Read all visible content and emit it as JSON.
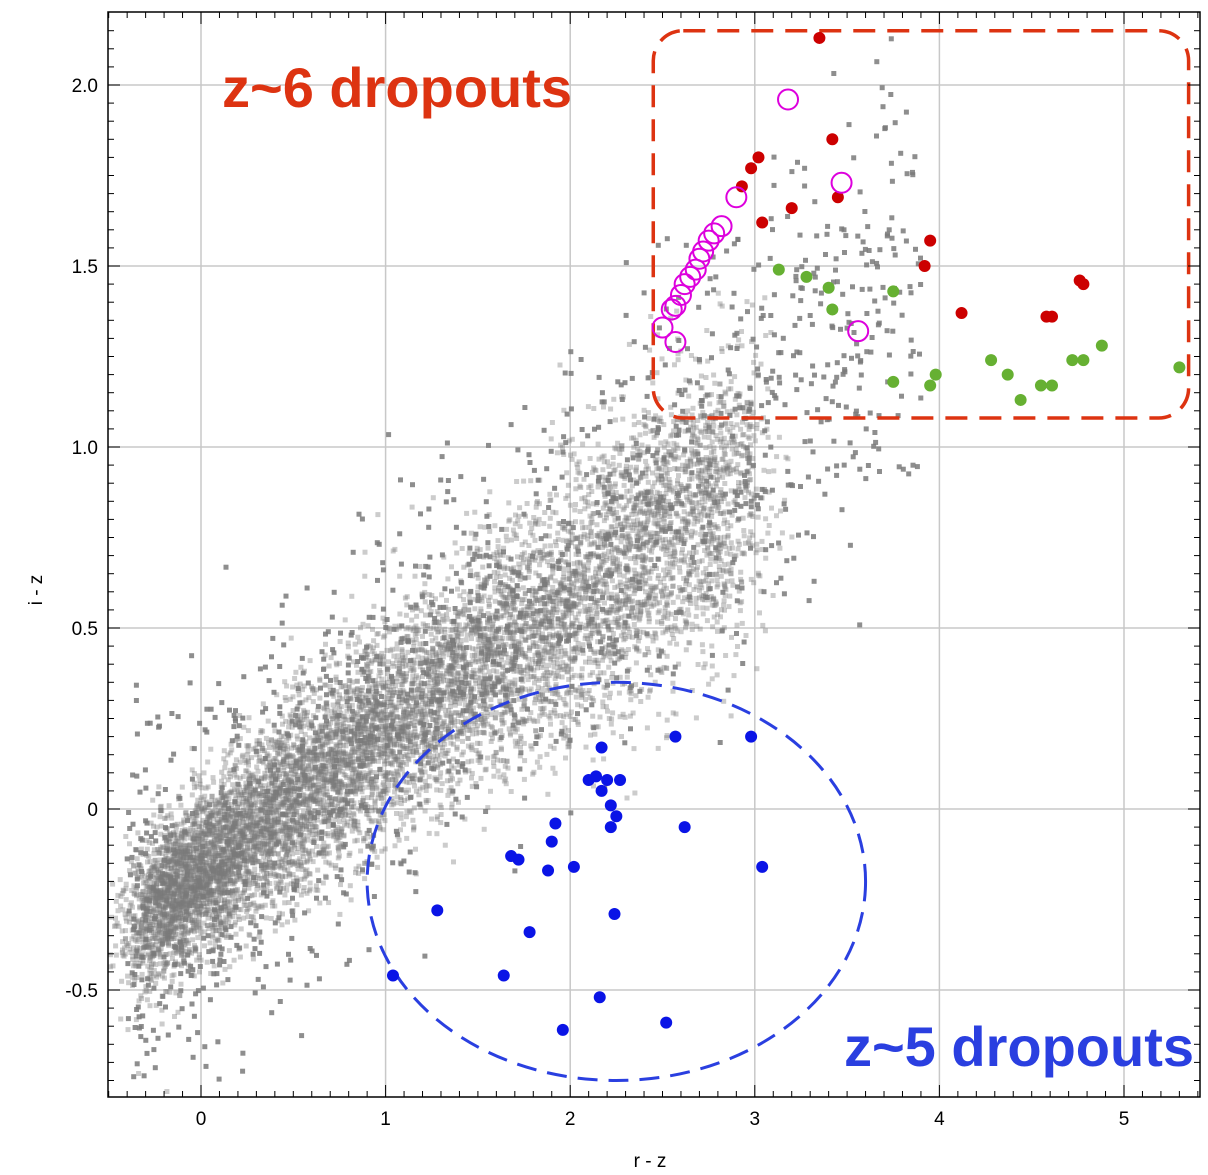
{
  "chart_data": {
    "type": "scatter",
    "title": "",
    "xlabel": "r - z",
    "ylabel": "i - z",
    "xlim": [
      -0.5,
      5.4
    ],
    "ylim": [
      -0.8,
      2.2
    ],
    "grid": true,
    "x_ticks": [
      "0",
      "1",
      "2",
      "3",
      "4",
      "5"
    ],
    "y_ticks": [
      "-0.5",
      "0",
      "0.5",
      "1.0",
      "1.5",
      "2.0"
    ],
    "colors": {
      "background_points": "#7a7a7a",
      "z6_red": "#cc0000",
      "z6_green": "#66b032",
      "z6_magenta": "#dd00dd",
      "z5_blue": "#0a14e6",
      "z6_box": "#dd3311",
      "z5_ellipse": "#2a3fe0"
    },
    "annotations": [
      {
        "id": "z6",
        "text": "z~6 dropouts",
        "color": "#dd3311",
        "region": "dashed rounded box, upper right",
        "box_x": [
          2.45,
          5.35
        ],
        "box_y": [
          1.08,
          2.15
        ]
      },
      {
        "id": "z5",
        "text": "z~5 dropouts",
        "color": "#2a3fe0",
        "region": "dashed ellipse, lower middle",
        "ellipse_center": [
          2.25,
          -0.2
        ],
        "ellipse_radii": [
          1.35,
          0.55
        ]
      }
    ],
    "background_density": {
      "description": "dense grey cloud of field objects along a diagonal locus",
      "locus": [
        [
          -0.2,
          -0.3
        ],
        [
          0.2,
          0.0
        ],
        [
          0.6,
          0.2
        ],
        [
          1.0,
          0.35
        ],
        [
          1.5,
          0.5
        ],
        [
          2.0,
          0.65
        ],
        [
          2.5,
          0.85
        ],
        [
          3.0,
          1.0
        ]
      ]
    },
    "series": [
      {
        "name": "",
        "color": "#cc0000",
        "marker": "filled circle",
        "points": [
          [
            3.35,
            2.13
          ],
          [
            3.02,
            1.8
          ],
          [
            2.98,
            1.77
          ],
          [
            2.93,
            1.72
          ],
          [
            3.42,
            1.85
          ],
          [
            3.45,
            1.69
          ],
          [
            3.04,
            1.62
          ],
          [
            3.2,
            1.66
          ],
          [
            3.95,
            1.57
          ],
          [
            3.92,
            1.5
          ],
          [
            4.12,
            1.37
          ],
          [
            4.58,
            1.36
          ],
          [
            4.61,
            1.36
          ],
          [
            4.76,
            1.46
          ],
          [
            4.78,
            1.45
          ]
        ]
      },
      {
        "name": "",
        "color": "#66b032",
        "marker": "filled circle",
        "points": [
          [
            3.13,
            1.49
          ],
          [
            3.28,
            1.47
          ],
          [
            3.4,
            1.44
          ],
          [
            3.42,
            1.38
          ],
          [
            3.75,
            1.43
          ],
          [
            3.75,
            1.18
          ],
          [
            3.95,
            1.17
          ],
          [
            3.98,
            1.2
          ],
          [
            4.28,
            1.24
          ],
          [
            4.37,
            1.2
          ],
          [
            4.44,
            1.13
          ],
          [
            4.55,
            1.17
          ],
          [
            4.61,
            1.17
          ],
          [
            4.72,
            1.24
          ],
          [
            4.78,
            1.24
          ],
          [
            4.88,
            1.28
          ],
          [
            5.3,
            1.22
          ]
        ]
      },
      {
        "name": "",
        "color": "#dd00dd",
        "marker": "open circle",
        "points": [
          [
            3.18,
            1.96
          ],
          [
            3.47,
            1.73
          ],
          [
            2.9,
            1.69
          ],
          [
            2.82,
            1.61
          ],
          [
            2.78,
            1.59
          ],
          [
            2.75,
            1.57
          ],
          [
            2.72,
            1.54
          ],
          [
            2.7,
            1.52
          ],
          [
            2.68,
            1.49
          ],
          [
            2.65,
            1.47
          ],
          [
            2.62,
            1.45
          ],
          [
            2.6,
            1.42
          ],
          [
            2.57,
            1.39
          ],
          [
            2.55,
            1.38
          ],
          [
            2.5,
            1.33
          ],
          [
            2.57,
            1.29
          ],
          [
            3.56,
            1.32
          ]
        ]
      },
      {
        "name": "",
        "color": "#0a14e6",
        "marker": "filled circle",
        "points": [
          [
            2.17,
            0.17
          ],
          [
            2.57,
            0.2
          ],
          [
            2.98,
            0.2
          ],
          [
            2.1,
            0.08
          ],
          [
            2.14,
            0.09
          ],
          [
            2.2,
            0.08
          ],
          [
            2.27,
            0.08
          ],
          [
            2.17,
            0.05
          ],
          [
            2.22,
            0.01
          ],
          [
            2.25,
            -0.02
          ],
          [
            2.22,
            -0.05
          ],
          [
            2.62,
            -0.05
          ],
          [
            1.92,
            -0.04
          ],
          [
            1.9,
            -0.09
          ],
          [
            1.68,
            -0.13
          ],
          [
            1.72,
            -0.14
          ],
          [
            1.88,
            -0.17
          ],
          [
            2.02,
            -0.16
          ],
          [
            3.04,
            -0.16
          ],
          [
            1.28,
            -0.28
          ],
          [
            2.24,
            -0.29
          ],
          [
            1.78,
            -0.34
          ],
          [
            1.04,
            -0.46
          ],
          [
            1.64,
            -0.46
          ],
          [
            2.16,
            -0.52
          ],
          [
            1.96,
            -0.61
          ],
          [
            2.52,
            -0.59
          ]
        ]
      }
    ]
  }
}
